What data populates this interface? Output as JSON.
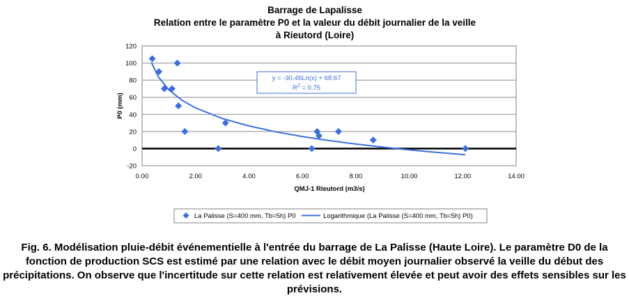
{
  "chart_data": {
    "type": "scatter",
    "title": [
      "Barrage de Lapalisse",
      "Relation entre le paramètre P0 et la valeur du débit journalier de la veille",
      "à Rieutord (Loire)"
    ],
    "xlabel": "QMJ-1 Rieutord (m3/s)",
    "ylabel": "P0 (mm)",
    "xlim": [
      0,
      14
    ],
    "ylim": [
      -20,
      120
    ],
    "xticks": [
      "0.00",
      "2.00",
      "4.00",
      "6.00",
      "8.00",
      "10.00",
      "12.00",
      "14.00"
    ],
    "yticks": [
      "-20",
      "0",
      "20",
      "40",
      "60",
      "80",
      "100",
      "120"
    ],
    "grid": "horizontal",
    "legend_position": "bottom",
    "series": [
      {
        "name": "La Palisse (S=400 mm, Tb=5h) P0",
        "color": "#3b6fe0",
        "marker": "diamond",
        "x": [
          0.38,
          0.63,
          0.83,
          1.12,
          1.32,
          1.36,
          1.6,
          2.85,
          3.12,
          6.35,
          6.55,
          6.62,
          7.35,
          8.65,
          12.1
        ],
        "y": [
          105,
          90,
          70,
          70,
          100,
          50,
          20,
          0,
          30,
          0,
          20,
          15,
          20,
          10,
          0
        ]
      },
      {
        "name": "Logarithmique (La Palisse (S=400 mm, Tb=5h) P0)",
        "color": "#3b6fe0",
        "type": "line",
        "x": [
          0.35,
          0.6,
          1,
          1.5,
          2,
          3,
          4,
          5,
          6,
          7,
          8,
          9,
          10,
          11,
          12.1
        ],
        "y": [
          100.64,
          84.23,
          68.67,
          56.32,
          47.56,
          35.21,
          26.45,
          19.65,
          14.1,
          9.4,
          5.33,
          1.74,
          -1.46,
          -4.36,
          -7.26
        ]
      }
    ],
    "annotation": {
      "equation": "y = -30.46Ln(x) + 68.67",
      "r2_prefix": "R",
      "r2_sup": "2",
      "r2_suffix": " = 0.75"
    }
  },
  "caption": "Fig. 6. Modélisation pluie-débit événementielle à l'entrée du barrage de La Palisse (Haute Loire). Le paramètre D0 de la fonction de production SCS est estimé par une relation avec le débit moyen journalier observé la veille du début des précipitations. On observe que l'incertitude sur cette relation est relativement élevée et peut avoir des effets sensibles sur les prévisions."
}
